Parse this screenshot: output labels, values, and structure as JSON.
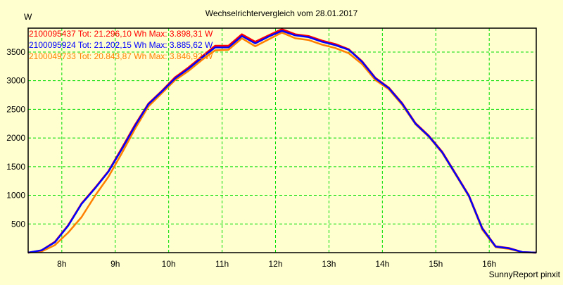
{
  "chart_data": {
    "type": "line",
    "title": "Wechselrichtervergleich vom 28.01.2017",
    "ylabel": "W",
    "xlabel": "",
    "footer": "SunnyReport pinxit",
    "xlim": [
      7.37,
      16.88
    ],
    "ylim": [
      0,
      3917
    ],
    "grid": true,
    "x_ticks": [
      8,
      9,
      10,
      11,
      12,
      13,
      14,
      15,
      16
    ],
    "x_tick_labels": [
      "8h",
      "9h",
      "10h",
      "11h",
      "12h",
      "13h",
      "14h",
      "15h",
      "16h"
    ],
    "y_ticks": [
      500,
      1000,
      1500,
      2000,
      2500,
      3000,
      3500
    ],
    "y_tick_labels": [
      "500",
      "1000",
      "1500",
      "2000",
      "2500",
      "3000",
      "3500"
    ],
    "legend_position": "top-left",
    "series": [
      {
        "name": "2100095437 Tot: 21.296,10 Wh Max: 3.898,31 W",
        "color": "#ff0000",
        "x": [
          7.37,
          7.62,
          7.87,
          8.12,
          8.37,
          8.62,
          8.87,
          9.12,
          9.37,
          9.62,
          9.87,
          10.12,
          10.37,
          10.62,
          10.87,
          11.12,
          11.37,
          11.62,
          11.87,
          12.12,
          12.37,
          12.62,
          12.87,
          13.12,
          13.37,
          13.62,
          13.87,
          14.12,
          14.37,
          14.62,
          14.87,
          15.12,
          15.37,
          15.62,
          15.87,
          16.12,
          16.37,
          16.62,
          16.88
        ],
        "y": [
          0,
          40,
          190,
          480,
          860,
          1130,
          1420,
          1820,
          2230,
          2600,
          2820,
          3060,
          3230,
          3420,
          3610,
          3610,
          3810,
          3680,
          3790,
          3900,
          3810,
          3780,
          3700,
          3640,
          3550,
          3340,
          3050,
          2880,
          2610,
          2260,
          2040,
          1760,
          1380,
          1000,
          430,
          110,
          80,
          10,
          0
        ]
      },
      {
        "name": "2100095924 Tot: 21.202,15 Wh Max: 3.885,62 W",
        "color": "#0000ff",
        "x": [
          7.37,
          7.62,
          7.87,
          8.12,
          8.37,
          8.62,
          8.87,
          9.12,
          9.37,
          9.62,
          9.87,
          10.12,
          10.37,
          10.62,
          10.87,
          11.12,
          11.37,
          11.62,
          11.87,
          12.12,
          12.37,
          12.62,
          12.87,
          13.12,
          13.37,
          13.62,
          13.87,
          14.12,
          14.37,
          14.62,
          14.87,
          15.12,
          15.37,
          15.62,
          15.87,
          16.12,
          16.37,
          16.62,
          16.88
        ],
        "y": [
          0,
          40,
          180,
          470,
          850,
          1120,
          1410,
          1800,
          2210,
          2590,
          2810,
          3040,
          3210,
          3400,
          3580,
          3580,
          3780,
          3650,
          3770,
          3870,
          3790,
          3760,
          3680,
          3620,
          3540,
          3330,
          3040,
          2870,
          2600,
          2250,
          2030,
          1750,
          1370,
          990,
          420,
          105,
          75,
          10,
          0
        ]
      },
      {
        "name": "2100049733 Tot: 20.843,87 Wh Max: 3.846,92 W",
        "color": "#ff8000",
        "x": [
          7.37,
          7.62,
          7.87,
          8.12,
          8.37,
          8.62,
          8.87,
          9.12,
          9.37,
          9.62,
          9.87,
          10.12,
          10.37,
          10.62,
          10.87,
          11.12,
          11.37,
          11.62,
          11.87,
          12.12,
          12.37,
          12.62,
          12.87,
          13.12,
          13.37,
          13.62,
          13.87,
          14.12,
          14.37,
          14.62,
          14.87,
          15.12,
          15.37,
          15.62,
          15.87,
          16.12,
          16.37,
          16.62,
          16.88
        ],
        "y": [
          0,
          20,
          130,
          350,
          620,
          990,
          1320,
          1730,
          2160,
          2550,
          2780,
          3010,
          3170,
          3360,
          3530,
          3540,
          3740,
          3600,
          3720,
          3840,
          3740,
          3710,
          3630,
          3570,
          3480,
          3290,
          3010,
          2850,
          2580,
          2240,
          2020,
          1740,
          1360,
          980,
          400,
          95,
          65,
          5,
          0
        ]
      }
    ]
  }
}
